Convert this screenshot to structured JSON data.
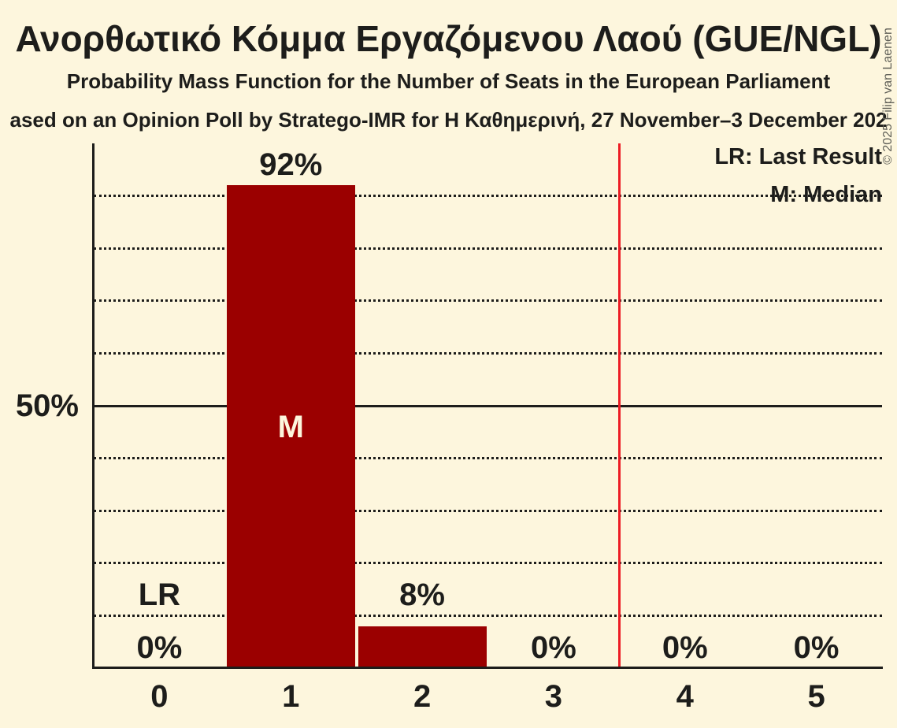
{
  "page": {
    "title": "Ανορθωτικό Κόμμα Εργαζόμενου Λαού (GUE/NGL)",
    "subtitle": "Probability Mass Function for the Number of Seats in the European Parliament",
    "source_line": "ased on an Opinion Poll by Stratego-IMR for Η Καθημερινή, 27 November–3 December 202",
    "copyright": "© 2025 Filip van Laenen"
  },
  "legend": {
    "last_result_label": "LR: Last Result",
    "median_label": "M: Median"
  },
  "chart_data": {
    "type": "bar",
    "categories": [
      "0",
      "1",
      "2",
      "3",
      "4",
      "5"
    ],
    "values": [
      0,
      92,
      8,
      0,
      0,
      0
    ],
    "bar_labels": [
      "0%",
      "92%",
      "8%",
      "0%",
      "0%",
      "0%"
    ],
    "xlabel": "",
    "ylabel": "",
    "ylim": [
      0,
      100
    ],
    "ytick_labels": [
      "50%"
    ],
    "ytick_values": [
      50
    ],
    "gridlines_percent": [
      10,
      20,
      30,
      40,
      50,
      60,
      70,
      80,
      90
    ],
    "solid_gridline_percent": 50,
    "grid_style": "dotted horizontal",
    "legend_position": "top-right",
    "median": {
      "seat": 1,
      "marker": "M"
    },
    "last_result": {
      "seat": 0,
      "marker": "LR"
    },
    "vertical_red_line_x": 3.5,
    "colors": {
      "bar": "#9b0000",
      "red_line": "#ed1c24",
      "background": "#fdf6dd",
      "text": "#1d1d1b"
    }
  }
}
